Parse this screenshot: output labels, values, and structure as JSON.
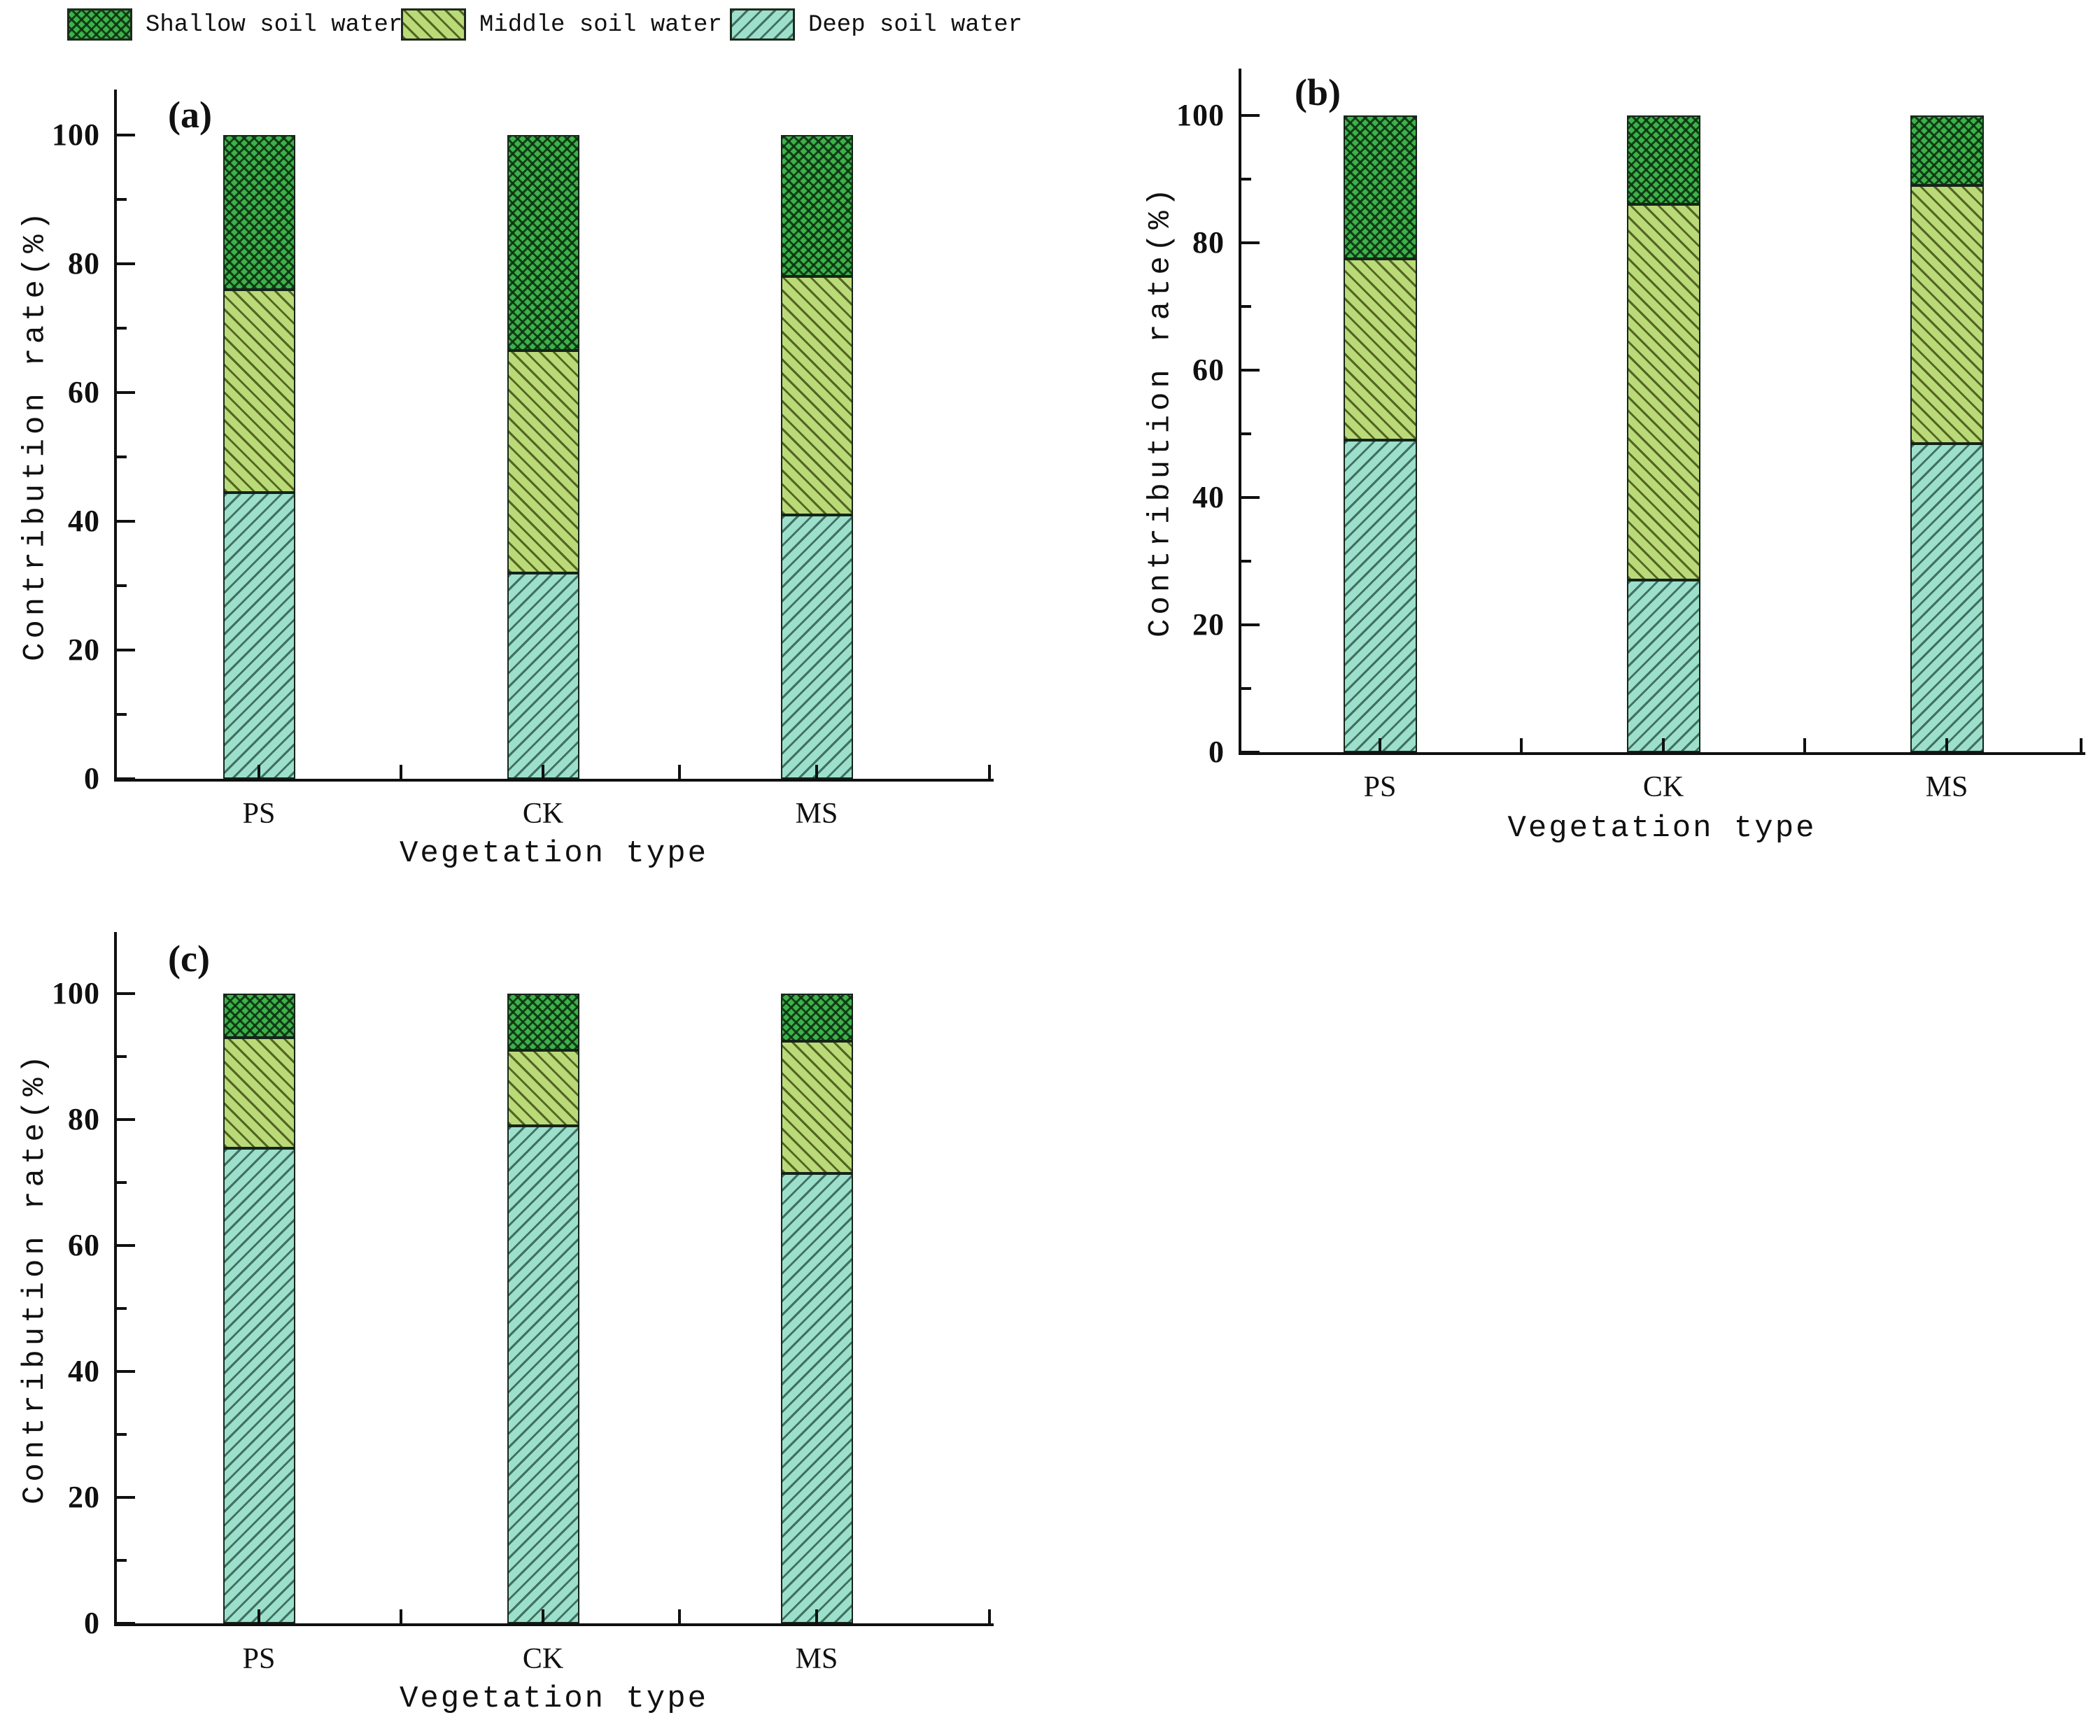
{
  "legend": {
    "position": "top-left",
    "items": [
      {
        "label": "Shallow soil water",
        "pattern": "crosshatch",
        "fill": "#3cb24a"
      },
      {
        "label": "Middle soil water",
        "pattern": "backslash-hatch",
        "fill": "#bada78"
      },
      {
        "label": "Deep soil water",
        "pattern": "slash-hatch",
        "fill": "#9ce0cb"
      }
    ]
  },
  "colors": {
    "shallow_fill": "#3cb24a",
    "middle_fill": "#bada78",
    "deep_fill": "#9ce0cb",
    "hatch_line_dark_green": "#0d3010",
    "hatch_line_olive": "#48581a",
    "hatch_line_teal": "#376458",
    "axis": "#101010"
  },
  "chart_data": [
    {
      "type": "bar",
      "stacked": true,
      "panel_label": "(a)",
      "xlabel": "Vegetation type",
      "ylabel": "Contribution rate(%)",
      "ylim": [
        0,
        100
      ],
      "y_ticks": [
        0,
        20,
        40,
        60,
        80,
        100
      ],
      "grid": false,
      "legend_position": "top-left",
      "categories": [
        "PS",
        "CK",
        "MS"
      ],
      "series": [
        {
          "name": "Deep soil water",
          "pattern": "slash",
          "values": [
            44.5,
            32.0,
            41.0
          ]
        },
        {
          "name": "Middle soil water",
          "pattern": "backslash",
          "values": [
            31.5,
            34.5,
            37.0
          ]
        },
        {
          "name": "Shallow soil water",
          "pattern": "cross",
          "values": [
            24.0,
            33.5,
            22.0
          ]
        }
      ]
    },
    {
      "type": "bar",
      "stacked": true,
      "panel_label": "(b)",
      "xlabel": "Vegetation type",
      "ylabel": "Contribution rate(%)",
      "ylim": [
        0,
        100
      ],
      "y_ticks": [
        0,
        20,
        40,
        60,
        80,
        100
      ],
      "grid": false,
      "categories": [
        "PS",
        "CK",
        "MS"
      ],
      "series": [
        {
          "name": "Deep soil water",
          "pattern": "slash",
          "values": [
            49.0,
            27.0,
            48.5
          ]
        },
        {
          "name": "Middle soil water",
          "pattern": "backslash",
          "values": [
            28.5,
            59.0,
            40.5
          ]
        },
        {
          "name": "Shallow soil water",
          "pattern": "cross",
          "values": [
            22.5,
            14.0,
            11.0
          ]
        }
      ]
    },
    {
      "type": "bar",
      "stacked": true,
      "panel_label": "(c)",
      "xlabel": "Vegetation type",
      "ylabel": "Contribution rate(%)",
      "ylim": [
        0,
        100
      ],
      "y_ticks": [
        0,
        20,
        40,
        60,
        80,
        100
      ],
      "grid": false,
      "categories": [
        "PS",
        "CK",
        "MS"
      ],
      "series": [
        {
          "name": "Deep soil water",
          "pattern": "slash",
          "values": [
            75.5,
            79.0,
            71.5
          ]
        },
        {
          "name": "Middle soil water",
          "pattern": "backslash",
          "values": [
            17.5,
            12.0,
            21.0
          ]
        },
        {
          "name": "Shallow soil water",
          "pattern": "cross",
          "values": [
            7.0,
            9.0,
            7.5
          ]
        }
      ]
    }
  ]
}
